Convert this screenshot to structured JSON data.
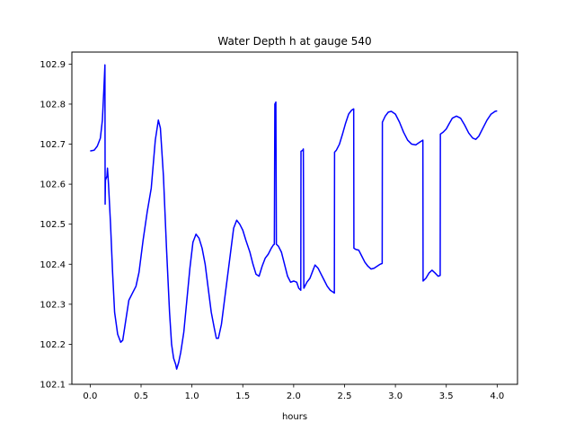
{
  "chart_data": {
    "type": "line",
    "title": "Water Depth h at gauge 540",
    "xlabel": "hours",
    "ylabel": "",
    "xlim": [
      -0.18,
      4.2
    ],
    "ylim": [
      102.1,
      102.93
    ],
    "x_ticks": [
      0.0,
      0.5,
      1.0,
      1.5,
      2.0,
      2.5,
      3.0,
      3.5,
      4.0
    ],
    "x_tick_labels": [
      "0.0",
      "0.5",
      "1.0",
      "1.5",
      "2.0",
      "2.5",
      "3.0",
      "3.5",
      "4.0"
    ],
    "y_ticks": [
      102.1,
      102.2,
      102.3,
      102.4,
      102.5,
      102.6,
      102.7,
      102.8,
      102.9
    ],
    "y_tick_labels": [
      "102.1",
      "102.2",
      "102.3",
      "102.4",
      "102.5",
      "102.6",
      "102.7",
      "102.8",
      "102.9"
    ],
    "grid": false,
    "legend": "none",
    "series": [
      {
        "color": "#0000ff",
        "points": [
          [
            0.0,
            102.683
          ],
          [
            0.04,
            102.685
          ],
          [
            0.07,
            102.695
          ],
          [
            0.1,
            102.715
          ],
          [
            0.12,
            102.76
          ],
          [
            0.135,
            102.84
          ],
          [
            0.145,
            102.898
          ],
          [
            0.147,
            102.55
          ],
          [
            0.15,
            102.61
          ],
          [
            0.165,
            102.62
          ],
          [
            0.17,
            102.64
          ],
          [
            0.175,
            102.62
          ],
          [
            0.18,
            102.6
          ],
          [
            0.2,
            102.5
          ],
          [
            0.22,
            102.38
          ],
          [
            0.24,
            102.28
          ],
          [
            0.27,
            102.225
          ],
          [
            0.3,
            102.205
          ],
          [
            0.32,
            102.21
          ],
          [
            0.35,
            102.26
          ],
          [
            0.38,
            102.31
          ],
          [
            0.42,
            102.33
          ],
          [
            0.45,
            102.345
          ],
          [
            0.48,
            102.38
          ],
          [
            0.52,
            102.46
          ],
          [
            0.56,
            102.53
          ],
          [
            0.6,
            102.59
          ],
          [
            0.64,
            102.71
          ],
          [
            0.67,
            102.76
          ],
          [
            0.69,
            102.74
          ],
          [
            0.72,
            102.62
          ],
          [
            0.75,
            102.44
          ],
          [
            0.78,
            102.28
          ],
          [
            0.8,
            102.2
          ],
          [
            0.82,
            102.165
          ],
          [
            0.84,
            102.15
          ],
          [
            0.85,
            102.138
          ],
          [
            0.87,
            102.155
          ],
          [
            0.89,
            102.18
          ],
          [
            0.92,
            102.23
          ],
          [
            0.95,
            102.31
          ],
          [
            0.98,
            102.39
          ],
          [
            1.01,
            102.455
          ],
          [
            1.04,
            102.475
          ],
          [
            1.07,
            102.465
          ],
          [
            1.1,
            102.44
          ],
          [
            1.13,
            102.4
          ],
          [
            1.16,
            102.34
          ],
          [
            1.19,
            102.28
          ],
          [
            1.22,
            102.24
          ],
          [
            1.24,
            102.215
          ],
          [
            1.26,
            102.215
          ],
          [
            1.29,
            102.25
          ],
          [
            1.32,
            102.31
          ],
          [
            1.35,
            102.37
          ],
          [
            1.38,
            102.43
          ],
          [
            1.41,
            102.49
          ],
          [
            1.44,
            102.51
          ],
          [
            1.47,
            102.5
          ],
          [
            1.5,
            102.485
          ],
          [
            1.53,
            102.46
          ],
          [
            1.57,
            102.43
          ],
          [
            1.6,
            102.4
          ],
          [
            1.63,
            102.375
          ],
          [
            1.66,
            102.37
          ],
          [
            1.69,
            102.395
          ],
          [
            1.72,
            102.415
          ],
          [
            1.75,
            102.425
          ],
          [
            1.78,
            102.44
          ],
          [
            1.8,
            102.448
          ],
          [
            1.81,
            102.45
          ],
          [
            1.815,
            102.8
          ],
          [
            1.825,
            102.805
          ],
          [
            1.83,
            102.45
          ],
          [
            1.85,
            102.445
          ],
          [
            1.88,
            102.43
          ],
          [
            1.91,
            102.4
          ],
          [
            1.94,
            102.37
          ],
          [
            1.97,
            102.355
          ],
          [
            2.0,
            102.358
          ],
          [
            2.03,
            102.355
          ],
          [
            2.05,
            102.34
          ],
          [
            2.07,
            102.335
          ],
          [
            2.072,
            102.682
          ],
          [
            2.09,
            102.685
          ],
          [
            2.095,
            102.688
          ],
          [
            2.1,
            102.34
          ],
          [
            2.13,
            102.355
          ],
          [
            2.16,
            102.365
          ],
          [
            2.19,
            102.385
          ],
          [
            2.21,
            102.398
          ],
          [
            2.24,
            102.39
          ],
          [
            2.27,
            102.375
          ],
          [
            2.3,
            102.36
          ],
          [
            2.33,
            102.345
          ],
          [
            2.36,
            102.335
          ],
          [
            2.39,
            102.33
          ],
          [
            2.4,
            102.328
          ],
          [
            2.402,
            102.68
          ],
          [
            2.42,
            102.685
          ],
          [
            2.45,
            102.7
          ],
          [
            2.48,
            102.725
          ],
          [
            2.51,
            102.752
          ],
          [
            2.54,
            102.775
          ],
          [
            2.57,
            102.785
          ],
          [
            2.59,
            102.788
          ],
          [
            2.592,
            102.44
          ],
          [
            2.61,
            102.437
          ],
          [
            2.64,
            102.435
          ],
          [
            2.67,
            102.42
          ],
          [
            2.7,
            102.405
          ],
          [
            2.73,
            102.395
          ],
          [
            2.76,
            102.388
          ],
          [
            2.79,
            102.39
          ],
          [
            2.82,
            102.395
          ],
          [
            2.85,
            102.4
          ],
          [
            2.87,
            102.402
          ],
          [
            2.872,
            102.755
          ],
          [
            2.9,
            102.77
          ],
          [
            2.93,
            102.78
          ],
          [
            2.96,
            102.782
          ],
          [
            3.0,
            102.775
          ],
          [
            3.04,
            102.755
          ],
          [
            3.08,
            102.73
          ],
          [
            3.12,
            102.71
          ],
          [
            3.16,
            102.7
          ],
          [
            3.2,
            102.698
          ],
          [
            3.24,
            102.705
          ],
          [
            3.27,
            102.71
          ],
          [
            3.272,
            102.358
          ],
          [
            3.3,
            102.365
          ],
          [
            3.33,
            102.378
          ],
          [
            3.36,
            102.385
          ],
          [
            3.39,
            102.378
          ],
          [
            3.42,
            102.37
          ],
          [
            3.44,
            102.372
          ],
          [
            3.442,
            102.725
          ],
          [
            3.47,
            102.73
          ],
          [
            3.5,
            102.738
          ],
          [
            3.53,
            102.752
          ],
          [
            3.56,
            102.765
          ],
          [
            3.6,
            102.77
          ],
          [
            3.64,
            102.765
          ],
          [
            3.68,
            102.748
          ],
          [
            3.72,
            102.728
          ],
          [
            3.76,
            102.715
          ],
          [
            3.79,
            102.712
          ],
          [
            3.82,
            102.72
          ],
          [
            3.86,
            102.74
          ],
          [
            3.9,
            102.76
          ],
          [
            3.94,
            102.775
          ],
          [
            3.98,
            102.782
          ],
          [
            4.0,
            102.783
          ]
        ]
      }
    ]
  }
}
